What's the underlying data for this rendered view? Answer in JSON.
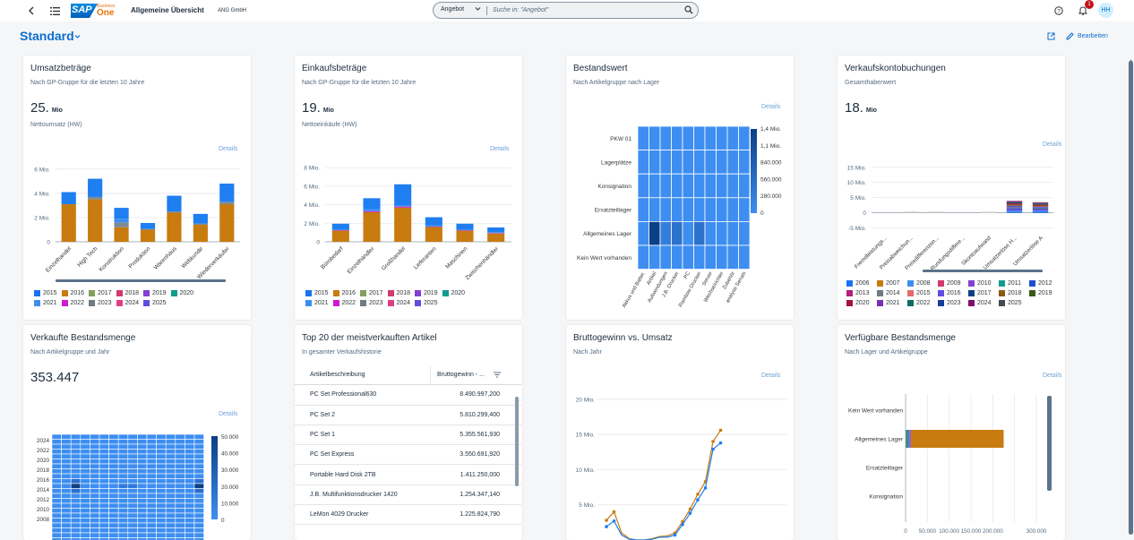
{
  "shell": {
    "brand_sap": "SAP",
    "brand_business": "Business",
    "brand_one": "One",
    "app_title": "Allgemeine Übersicht",
    "company": "ANG GmbH",
    "search_scope": "Angebot",
    "search_placeholder": "Suche in: \"Angebot\"",
    "notification_count": "1",
    "user_initials": "HH",
    "icons": [
      "back-icon",
      "menu-icon",
      "chevron-down-icon",
      "search-icon",
      "help-icon",
      "bell-icon"
    ]
  },
  "page": {
    "title": "Standard",
    "edit_label": "Bearbeiten",
    "icons": [
      "export-icon",
      "pencil-icon"
    ]
  },
  "colors": {
    "brand_blue": "#0a6ed1",
    "title_blue": "#0a6ed1",
    "blue": "#1f7ef0",
    "orange": "#c87b0e",
    "grey": "#7b8c96",
    "heat_light": "#3d8ef0",
    "heat_dark": "#0b3f86"
  },
  "legend_years": [
    {
      "year": "2015",
      "color": "#1873f0"
    },
    {
      "year": "2016",
      "color": "#c87b0e"
    },
    {
      "year": "2017",
      "color": "#82a05a"
    },
    {
      "year": "2018",
      "color": "#d03a6c"
    },
    {
      "year": "2019",
      "color": "#8440d3"
    },
    {
      "year": "2020",
      "color": "#119c8e"
    },
    {
      "year": "2021",
      "color": "#3d8ef0"
    },
    {
      "year": "2022",
      "color": "#d019d0"
    },
    {
      "year": "2023",
      "color": "#6f7a83"
    },
    {
      "year": "2024",
      "color": "#df3e83"
    },
    {
      "year": "2025",
      "color": "#5f4de0"
    }
  ],
  "legend_years_long": [
    {
      "year": "2006",
      "color": "#1873f0"
    },
    {
      "year": "2007",
      "color": "#c87b0e"
    },
    {
      "year": "2008",
      "color": "#3d8ef0"
    },
    {
      "year": "2009",
      "color": "#d03a6c"
    },
    {
      "year": "2010",
      "color": "#8440d3"
    },
    {
      "year": "2011",
      "color": "#119c8e"
    },
    {
      "year": "2012",
      "color": "#1f4fd0"
    },
    {
      "year": "2013",
      "color": "#b3207d"
    },
    {
      "year": "2014",
      "color": "#6f7a83"
    },
    {
      "year": "2015",
      "color": "#e06b6b"
    },
    {
      "year": "2016",
      "color": "#5f4de0"
    },
    {
      "year": "2017",
      "color": "#0b3f86"
    },
    {
      "year": "2018",
      "color": "#8c5a14"
    },
    {
      "year": "2019",
      "color": "#3a5a1a"
    },
    {
      "year": "2020",
      "color": "#a3123a"
    },
    {
      "year": "2021",
      "color": "#7a2db5"
    },
    {
      "year": "2022",
      "color": "#0e6b62"
    },
    {
      "year": "2023",
      "color": "#163d96"
    },
    {
      "year": "2024",
      "color": "#7d0d6e"
    },
    {
      "year": "2025",
      "color": "#414b53"
    }
  ],
  "cards": {
    "umsatz": {
      "title": "Umsatzbeträge",
      "subtitle": "Nach GP-Gruppe für die letzten 10 Jahre",
      "kpi_value": "25.",
      "kpi_unit": "Mio",
      "kpi_label": "Nettoumsatz (HW)",
      "details": "Details",
      "chart_data": {
        "type": "bar",
        "stacked": true,
        "categories": [
          "Einzelhandel",
          "High Tech",
          "Konstruktion",
          "Produktion",
          "Warenhaus",
          "Webkunde",
          "Wiederverkäufer"
        ],
        "yticks": [
          "0",
          "2 Mio.",
          "4 Mio.",
          "6 Mio."
        ],
        "ylim": [
          0,
          6.5
        ],
        "series": [
          {
            "name": "2016",
            "color": "#c87b0e",
            "values": [
              3.1,
              3.5,
              1.2,
              1.0,
              2.4,
              1.4,
              3.1
            ]
          },
          {
            "name": "2023",
            "color": "#7b8c96",
            "values": [
              0,
              0.2,
              0.4,
              0.05,
              0.1,
              0.1,
              0.2
            ]
          },
          {
            "name": "2021",
            "color": "#3d8ef0",
            "values": [
              0,
              0,
              0.3,
              0,
              0,
              0,
              0
            ]
          },
          {
            "name": "2015",
            "color": "#1f7ef0",
            "values": [
              1.0,
              1.5,
              0.9,
              0.5,
              1.3,
              0.8,
              1.5
            ]
          }
        ]
      }
    },
    "einkauf": {
      "title": "Einkaufsbeträge",
      "subtitle": "Nach GP-Gruppe für die letzten 10 Jahre",
      "kpi_value": "19.",
      "kpi_unit": "Mio",
      "kpi_label": "Nettoeinkäufe (HW)",
      "details": "Details",
      "chart_data": {
        "type": "bar",
        "stacked": true,
        "categories": [
          "Bürobedarf",
          "Einzelhändler",
          "Großhandel",
          "Lieferanten",
          "Maschinen",
          "Zwischenhändler"
        ],
        "yticks": [
          "0",
          "2 Mio.",
          "4 Mio.",
          "6 Mio.",
          "8 Mio."
        ],
        "ylim": [
          0,
          8.5
        ],
        "series": [
          {
            "name": "2016",
            "color": "#c87b0e",
            "values": [
              1.2,
              3.2,
              3.7,
              1.6,
              1.2,
              0.9
            ]
          },
          {
            "name": "2022",
            "color": "#d019d0",
            "values": [
              0.05,
              0.1,
              0.1,
              0.05,
              0.05,
              0.05
            ]
          },
          {
            "name": "2021",
            "color": "#3d8ef0",
            "values": [
              0.1,
              0.2,
              0.1,
              0.1,
              0.1,
              0.1
            ]
          },
          {
            "name": "2015",
            "color": "#1f7ef0",
            "values": [
              0.6,
              1.2,
              2.3,
              0.9,
              0.6,
              0.5
            ]
          }
        ]
      }
    },
    "bestandswert": {
      "title": "Bestandswert",
      "subtitle": "Nach Artikelgruppe nach Lager",
      "details": "Details",
      "chart_data": {
        "type": "heatmap",
        "rows": [
          "PKW 01",
          "Lagerplätze",
          "Konsignation",
          "Ersatzteillager",
          "Allgemeines Lager",
          "Kein Wert vorhanden"
        ],
        "cols": [
          "Akkus und Batter.",
          "Artikel",
          "Aufwendungen",
          "J.B. Drucker",
          "PC",
          "Rainbow Drucker",
          "Server",
          "Wechselrichter",
          "Zubehör",
          "analyse Serials"
        ],
        "scale": [
          "1,4 Mio.",
          "1,1 Mio.",
          "840.000",
          "560.000",
          "280.000",
          "0"
        ],
        "hot": [
          [
            4,
            1,
            1.0
          ],
          [
            4,
            3,
            0.35
          ],
          [
            4,
            5,
            0.35
          ],
          [
            4,
            2,
            0.2
          ]
        ]
      }
    },
    "vkkonto": {
      "title": "Verkaufskontobuchungen",
      "subtitle": "Gesamthabenwert",
      "kpi_value": "18.",
      "kpi_unit": "Mio",
      "details": "Details",
      "chart_data": {
        "type": "bar",
        "stacked": true,
        "categories": [
          "Fremdleistungs...",
          "Preisabweichun...",
          "Preisdifferenzen...",
          "Rundungsdiffere...",
          "Skontoaufwand",
          "Umsatzerlöse H...",
          "Umsatzerlöse A"
        ],
        "yticks": [
          "-5 Mio.",
          "0",
          "5 Mio.",
          "10 Mio.",
          "15 Mio."
        ],
        "ylim": [
          -6,
          17
        ],
        "values": [
          0,
          0.1,
          0.1,
          0,
          0.05,
          3.9,
          3.4
        ]
      }
    },
    "verkauftmenge": {
      "title": "Verkaufte Bestandsmenge",
      "subtitle": "Nach Artikelgruppe und Jahr",
      "kpi_value": "353.447",
      "details": "Details",
      "chart_data": {
        "type": "heatmap",
        "rows": [
          "2024",
          "2022",
          "2020",
          "2018",
          "2016",
          "2014",
          "2012",
          "2010",
          "2008"
        ],
        "scale": [
          "50.000",
          "40.000",
          "30.000",
          "20.000",
          "10.000",
          "0"
        ]
      }
    },
    "top20": {
      "title": "Top 20 der meistverkauften Artikel",
      "subtitle": "In gesamter Verkaufshistorie",
      "col1": "Artikelbeschreibung",
      "col2": "Bruttogewinn - ...",
      "rows": [
        {
          "name": "PC Set Professional630",
          "value": "8.490.997,200"
        },
        {
          "name": "PC Set 2",
          "value": "5.810.299,400"
        },
        {
          "name": "PC Set 1",
          "value": "5.355.561,930"
        },
        {
          "name": "PC Set Express",
          "value": "3.550.691,920"
        },
        {
          "name": "Portable Hard Disk 2TB",
          "value": "1.411.250,000"
        },
        {
          "name": "J.B. Multifunktionsdrucker 1420",
          "value": "1.254.347,140"
        },
        {
          "name": "LeMon 4029 Drucker",
          "value": "1.225.824,790"
        }
      ]
    },
    "brutto": {
      "title": "Bruttogewinn vs. Umsatz",
      "subtitle": "Nach Jahr",
      "details": "Details",
      "chart_data": {
        "type": "line",
        "yticks": [
          "5 Mio.",
          "10 Mio.",
          "15 Mio.",
          "20 Mio."
        ],
        "ylim": [
          0,
          21
        ],
        "series": [
          {
            "name": "Umsatz",
            "color": "#c87b0e",
            "values": [
              2.8,
              4.0,
              1.0,
              0.2,
              0,
              0,
              0.2,
              0.5,
              0.6,
              1.0,
              2.6,
              4.4,
              6.5,
              8.3,
              14.0,
              15.6
            ]
          },
          {
            "name": "Bruttogewinn",
            "color": "#1f7ef0",
            "values": [
              1.9,
              2.7,
              0.7,
              0.1,
              0,
              0,
              0.1,
              0.4,
              0.4,
              0.7,
              2.2,
              3.8,
              5.7,
              7.4,
              12.9,
              13.8
            ]
          }
        ]
      }
    },
    "verfuegbar": {
      "title": "Verfügbare Bestandsmenge",
      "subtitle": "Nach Lager und Artikelgruppe",
      "details": "Details",
      "chart_data": {
        "type": "bar",
        "orientation": "horizontal",
        "categories": [
          "Kein Wert vorhanden",
          "Allgemeines Lager",
          "Ersatzteillager",
          "Konsignation"
        ],
        "xticks": [
          "0",
          "50.000",
          "100.000",
          "150.000",
          "200.000",
          "300.000"
        ],
        "xlim": [
          0,
          300000
        ],
        "values": [
          0,
          225000,
          0,
          0
        ]
      }
    }
  }
}
